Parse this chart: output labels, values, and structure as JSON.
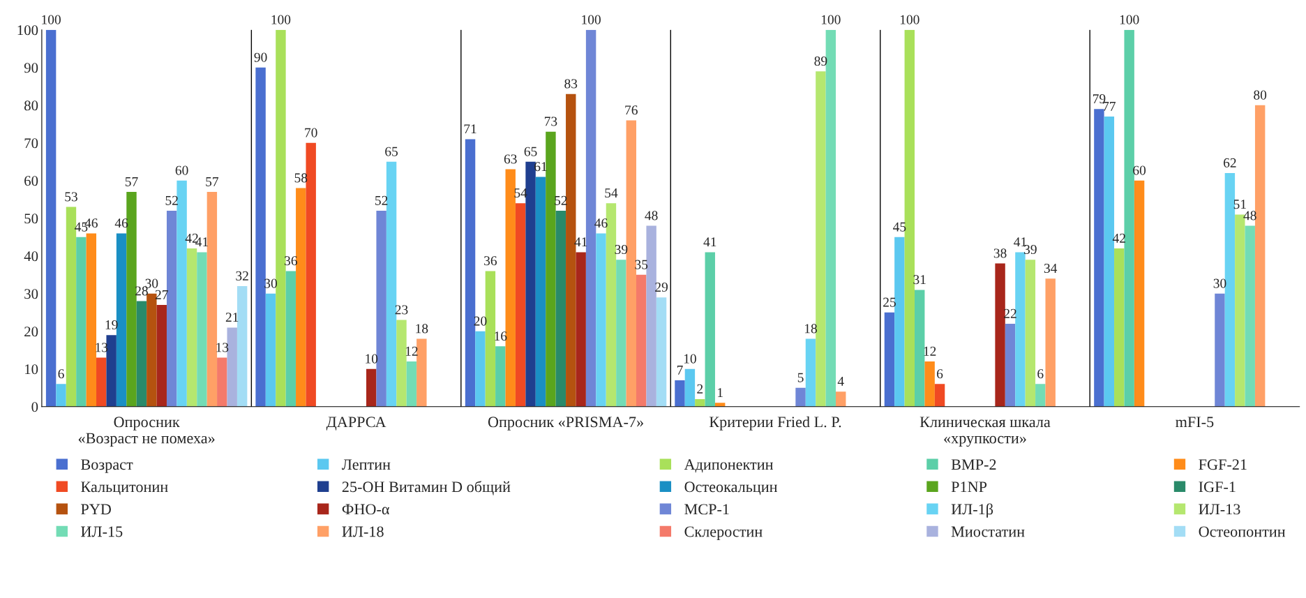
{
  "chart_data": {
    "type": "bar",
    "categories": [
      "Опросник\n«Возраст не помеха»",
      "ДАРРСА",
      "Опросник «PRISMA-7»",
      "Критерии Fried L. P.",
      "Клиническая шкала\n«хрупкости»",
      "mFI-5"
    ],
    "ylim": [
      0,
      100
    ],
    "yticks": [
      0,
      10,
      20,
      30,
      40,
      50,
      60,
      70,
      80,
      90,
      100
    ],
    "grid": "x",
    "legend": "bottom",
    "data_labels": true,
    "series": [
      {
        "name": "Возраст",
        "color": "#4a6fd0",
        "values": [
          100,
          90,
          71,
          7,
          25,
          79
        ]
      },
      {
        "name": "Лептин",
        "color": "#5bc8f0",
        "values": [
          6,
          30,
          20,
          10,
          45,
          77
        ]
      },
      {
        "name": "Адипонектин",
        "color": "#a9e05a",
        "values": [
          53,
          100,
          36,
          2,
          100,
          42
        ]
      },
      {
        "name": "BMP-2",
        "color": "#5ccfa8",
        "values": [
          45,
          36,
          16,
          41,
          31,
          100
        ]
      },
      {
        "name": "FGF-21",
        "color": "#ff8c1a",
        "values": [
          46,
          58,
          63,
          1,
          12,
          60
        ]
      },
      {
        "name": "Кальцитонин",
        "color": "#f04a23",
        "values": [
          13,
          70,
          54,
          null,
          6,
          null
        ]
      },
      {
        "name": "25-ОН Витамин D общий",
        "color": "#1f3f8f",
        "values": [
          19,
          null,
          65,
          null,
          null,
          null
        ]
      },
      {
        "name": "Остеокальцин",
        "color": "#1a8fc4",
        "values": [
          46,
          null,
          61,
          null,
          null,
          null
        ]
      },
      {
        "name": "P1NP",
        "color": "#5aa51e",
        "values": [
          57,
          null,
          73,
          null,
          null,
          null
        ]
      },
      {
        "name": "IGF-1",
        "color": "#2a8a6a",
        "values": [
          28,
          null,
          52,
          null,
          null,
          null
        ]
      },
      {
        "name": "PYD",
        "color": "#b5520f",
        "values": [
          30,
          null,
          83,
          null,
          null,
          null
        ]
      },
      {
        "name": "ФНО-α",
        "color": "#a8261b",
        "values": [
          27,
          10,
          41,
          null,
          38,
          null
        ]
      },
      {
        "name": "MCP-1",
        "color": "#6f86d6",
        "values": [
          52,
          52,
          100,
          5,
          22,
          30
        ]
      },
      {
        "name": "ИЛ-1β",
        "color": "#68d3f3",
        "values": [
          60,
          65,
          46,
          18,
          41,
          62
        ]
      },
      {
        "name": "ИЛ-13",
        "color": "#b5e76f",
        "values": [
          42,
          23,
          54,
          89,
          39,
          51
        ]
      },
      {
        "name": "ИЛ-15",
        "color": "#73dcb5",
        "values": [
          41,
          12,
          39,
          100,
          6,
          48
        ]
      },
      {
        "name": "ИЛ-18",
        "color": "#ffa066",
        "values": [
          57,
          18,
          76,
          4,
          34,
          80
        ]
      },
      {
        "name": "Склеростин",
        "color": "#f47a6a",
        "values": [
          13,
          null,
          35,
          null,
          null,
          null
        ]
      },
      {
        "name": "Миостатин",
        "color": "#a9b2de",
        "values": [
          21,
          null,
          48,
          null,
          null,
          null
        ]
      },
      {
        "name": "Остеопонтин",
        "color": "#a3ddf5",
        "values": [
          32,
          null,
          29,
          null,
          null,
          null
        ]
      }
    ]
  }
}
